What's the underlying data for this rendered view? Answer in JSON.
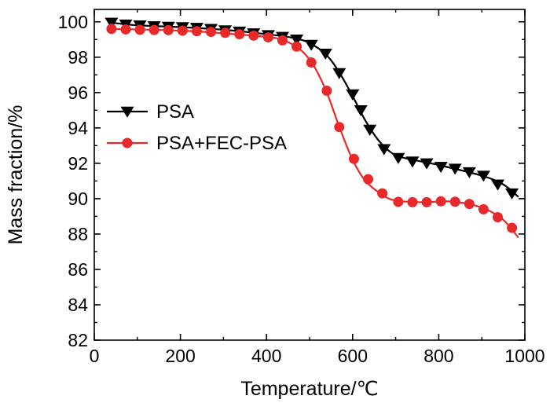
{
  "chart_data": {
    "type": "line",
    "title": "",
    "xlabel": "Temperature/℃",
    "ylabel": "Mass fraction/%",
    "xlim": [
      0,
      1000
    ],
    "ylim": [
      82,
      100.7
    ],
    "x_ticks": [
      0,
      200,
      400,
      600,
      800,
      1000
    ],
    "x_tick_labels": [
      "0",
      "200",
      "400",
      "600",
      "800",
      "1000"
    ],
    "y_ticks": [
      82,
      84,
      86,
      88,
      90,
      92,
      94,
      96,
      98,
      100
    ],
    "y_tick_labels": [
      "82",
      "84",
      "86",
      "88",
      "90",
      "92",
      "94",
      "96",
      "98",
      "100"
    ],
    "grid": false,
    "legend_position": "center-left",
    "series": [
      {
        "name": "PSA",
        "color": "#000000",
        "marker": "triangle-down",
        "curve": [
          [
            40,
            99.95
          ],
          [
            100,
            99.8
          ],
          [
            200,
            99.7
          ],
          [
            300,
            99.55
          ],
          [
            400,
            99.3
          ],
          [
            460,
            99.1
          ],
          [
            500,
            98.8
          ],
          [
            540,
            98.1
          ],
          [
            570,
            97.1
          ],
          [
            600,
            95.8
          ],
          [
            630,
            94.4
          ],
          [
            660,
            93.3
          ],
          [
            690,
            92.6
          ],
          [
            720,
            92.3
          ],
          [
            800,
            91.9
          ],
          [
            900,
            91.3
          ],
          [
            950,
            90.8
          ],
          [
            985,
            90.1
          ]
        ],
        "markers": [
          [
            40,
            99.95
          ],
          [
            73,
            99.85
          ],
          [
            106,
            99.8
          ],
          [
            139,
            99.75
          ],
          [
            172,
            99.72
          ],
          [
            205,
            99.7
          ],
          [
            238,
            99.66
          ],
          [
            271,
            99.6
          ],
          [
            304,
            99.52
          ],
          [
            337,
            99.45
          ],
          [
            370,
            99.35
          ],
          [
            404,
            99.25
          ],
          [
            437,
            99.15
          ],
          [
            470,
            99.0
          ],
          [
            504,
            98.7
          ],
          [
            537,
            98.2
          ],
          [
            569,
            97.1
          ],
          [
            600,
            95.9
          ],
          [
            619,
            95.0
          ],
          [
            640,
            93.9
          ],
          [
            673,
            92.8
          ],
          [
            706,
            92.3
          ],
          [
            739,
            92.1
          ],
          [
            772,
            92.0
          ],
          [
            805,
            91.8
          ],
          [
            838,
            91.7
          ],
          [
            871,
            91.5
          ],
          [
            904,
            91.3
          ],
          [
            937,
            90.8
          ],
          [
            970,
            90.3
          ]
        ]
      },
      {
        "name": "PSA+FEC-PSA",
        "color": "#e8292a",
        "marker": "circle",
        "curve": [
          [
            40,
            99.6
          ],
          [
            200,
            99.5
          ],
          [
            300,
            99.35
          ],
          [
            400,
            99.15
          ],
          [
            440,
            98.95
          ],
          [
            480,
            98.4
          ],
          [
            510,
            97.5
          ],
          [
            540,
            96.0
          ],
          [
            570,
            94.0
          ],
          [
            600,
            92.2
          ],
          [
            630,
            91.0
          ],
          [
            670,
            90.2
          ],
          [
            700,
            89.9
          ],
          [
            760,
            89.8
          ],
          [
            820,
            89.85
          ],
          [
            870,
            89.7
          ],
          [
            910,
            89.4
          ],
          [
            950,
            88.8
          ],
          [
            985,
            87.8
          ]
        ],
        "markers": [
          [
            40,
            99.6
          ],
          [
            73,
            99.57
          ],
          [
            106,
            99.55
          ],
          [
            139,
            99.54
          ],
          [
            172,
            99.53
          ],
          [
            205,
            99.5
          ],
          [
            238,
            99.47
          ],
          [
            271,
            99.43
          ],
          [
            304,
            99.38
          ],
          [
            337,
            99.3
          ],
          [
            370,
            99.22
          ],
          [
            404,
            99.12
          ],
          [
            437,
            98.95
          ],
          [
            470,
            98.6
          ],
          [
            504,
            97.7
          ],
          [
            540,
            96.1
          ],
          [
            569,
            94.05
          ],
          [
            603,
            92.25
          ],
          [
            636,
            91.1
          ],
          [
            669,
            90.3
          ],
          [
            706,
            89.82
          ],
          [
            739,
            89.8
          ],
          [
            772,
            89.8
          ],
          [
            805,
            89.85
          ],
          [
            838,
            89.83
          ],
          [
            871,
            89.7
          ],
          [
            904,
            89.4
          ],
          [
            937,
            88.95
          ],
          [
            970,
            88.35
          ]
        ]
      }
    ]
  }
}
